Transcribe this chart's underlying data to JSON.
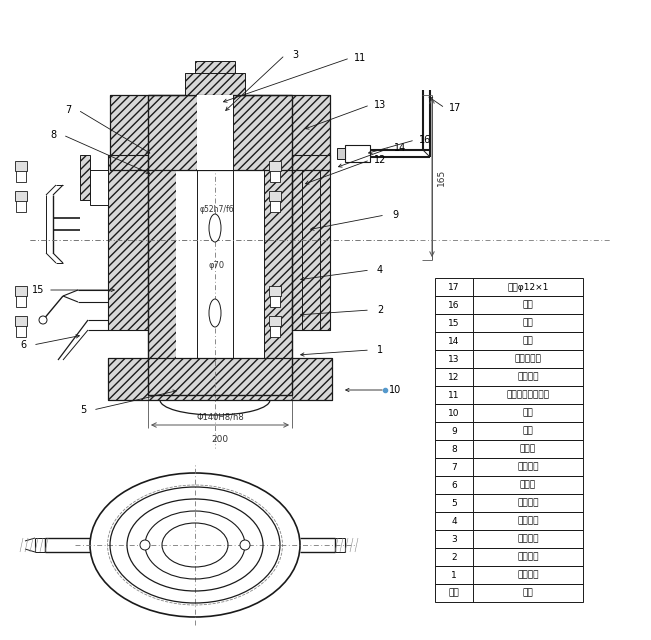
{
  "bg": "#ffffff",
  "lc": "#1a1a1a",
  "parts": [
    [
      "17",
      "钉管φ12×1"
    ],
    [
      "16",
      "接头"
    ],
    [
      "15",
      "嵌料"
    ],
    [
      "14",
      "螺母"
    ],
    [
      "13",
      "口形密封圈"
    ],
    [
      "12",
      "双头螺柱"
    ],
    [
      "11",
      "内六角隙紧定螺丁"
    ],
    [
      "10",
      "螺栓"
    ],
    [
      "9",
      "丝堵"
    ],
    [
      "8",
      "填料环"
    ],
    [
      "7",
      "填料压盖"
    ],
    [
      "6",
      "减压弹"
    ],
    [
      "5",
      "减压轴套"
    ],
    [
      "4",
      "上导轴承"
    ],
    [
      "3",
      "锁紧螺母"
    ],
    [
      "2",
      "填料轴套"
    ],
    [
      "1",
      "填料函体"
    ],
    [
      "序号",
      "名称"
    ]
  ]
}
